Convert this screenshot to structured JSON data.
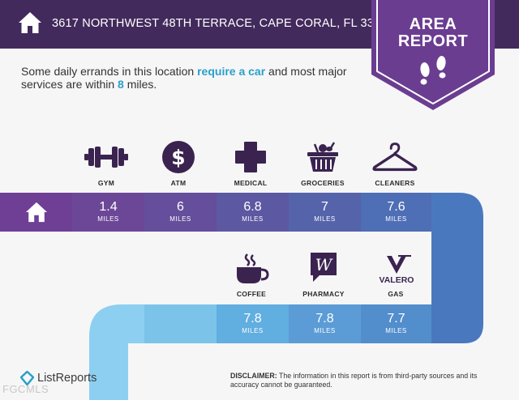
{
  "header": {
    "address": "3617 NORTHWEST 48TH TERRACE, CAPE CORAL, FL 33993",
    "badge_line1": "AREA",
    "badge_line2": "REPORT"
  },
  "intro": {
    "part1": "Some daily errands in this location ",
    "highlight1": "require a car",
    "part2": " and most major services are within ",
    "highlight2": "8",
    "part3": " miles."
  },
  "colors": {
    "header_bg": "#432a5c",
    "badge": "#6a3d91",
    "highlight": "#2aa0c9"
  },
  "row1": [
    {
      "label": "GYM",
      "distance": "1.4",
      "unit": "MILES",
      "icon": "dumbbell-icon"
    },
    {
      "label": "ATM",
      "distance": "6",
      "unit": "MILES",
      "icon": "dollar-icon"
    },
    {
      "label": "MEDICAL",
      "distance": "6.8",
      "unit": "MILES",
      "icon": "medical-cross-icon"
    },
    {
      "label": "GROCERIES",
      "distance": "7",
      "unit": "MILES",
      "icon": "grocery-basket-icon"
    },
    {
      "label": "CLEANERS",
      "distance": "7.6",
      "unit": "MILES",
      "icon": "hanger-icon"
    }
  ],
  "row2": [
    {
      "label": "COFFEE",
      "distance": "7.8",
      "unit": "MILES",
      "icon": "coffee-cup-icon"
    },
    {
      "label": "PHARMACY",
      "distance": "7.8",
      "unit": "MILES",
      "icon": "walgreens-logo-icon"
    },
    {
      "label": "GAS",
      "distance": "7.7",
      "unit": "MILES",
      "icon": "valero-logo-icon",
      "brand_text": "VALERO"
    }
  ],
  "footer": {
    "logo_text": "ListReports",
    "watermark": "FGCMLS",
    "disclaimer_label": "DISCLAIMER:",
    "disclaimer_text": " The information in this report is from third-party sources and its accuracy cannot be guaranteed."
  }
}
